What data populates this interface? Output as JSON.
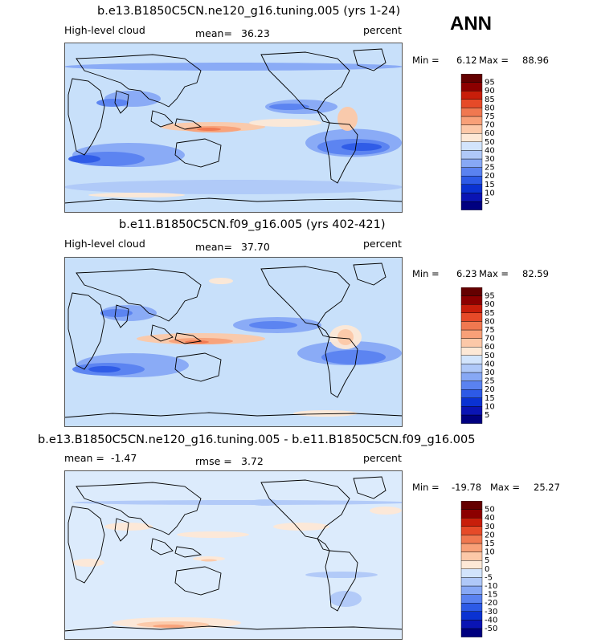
{
  "season": "ANN",
  "panels": [
    {
      "title": "b.e13.B1850C5CN.ne120_g16.tuning.005 (yrs 1-24)",
      "left_label": "High-level cloud",
      "mean_label": "mean=",
      "mean_value": "36.23",
      "units": "percent",
      "min_label": "Min =",
      "min_value": "6.12",
      "max_label": "Max =",
      "max_value": "88.96",
      "colorbar_levels": [
        "5",
        "10",
        "15",
        "20",
        "25",
        "30",
        "40",
        "50",
        "60",
        "70",
        "75",
        "80",
        "85",
        "90",
        "95"
      ],
      "fill": "#c8e0fa"
    },
    {
      "title": "b.e11.B1850C5CN.f09_g16.005 (yrs 402-421)",
      "left_label": "High-level cloud",
      "mean_label": "mean=",
      "mean_value": "37.70",
      "units": "percent",
      "min_label": "Min =",
      "min_value": "6.23",
      "max_label": "Max =",
      "max_value": "82.59",
      "colorbar_levels": [
        "5",
        "10",
        "15",
        "20",
        "25",
        "30",
        "40",
        "50",
        "60",
        "70",
        "75",
        "80",
        "85",
        "90",
        "95"
      ],
      "fill": "#c8e0fa"
    },
    {
      "title": "b.e13.B1850C5CN.ne120_g16.tuning.005 - b.e11.B1850C5CN.f09_g16.005",
      "left_label": "mean =",
      "mean_label": "",
      "mean_value": "-1.47",
      "rmse_label": "rmse =",
      "rmse_value": "3.72",
      "units": "percent",
      "min_label": "Min =",
      "min_value": "-19.78",
      "max_label": "Max =",
      "max_value": "25.27",
      "colorbar_levels": [
        "-50",
        "-40",
        "-30",
        "-20",
        "-15",
        "-10",
        "-5",
        "0",
        "5",
        "10",
        "15",
        "20",
        "30",
        "40",
        "50"
      ],
      "fill": "#dcebfc"
    }
  ],
  "colors": {
    "abs_scale": [
      "#000080",
      "#0a14b4",
      "#0a32d2",
      "#2d5ae6",
      "#5a82f0",
      "#87a8f5",
      "#afc8f8",
      "#d2e4fc",
      "#fde8d6",
      "#fcc8a8",
      "#f8a078",
      "#f07850",
      "#e64a28",
      "#c81e0a",
      "#8c0000",
      "#640000"
    ],
    "diff_scale": [
      "#000080",
      "#0a14b4",
      "#0a32d2",
      "#2d5ae6",
      "#5a82f0",
      "#87a8f5",
      "#afc8f8",
      "#d2e4fc",
      "#fde8d6",
      "#fcc8a8",
      "#f8a078",
      "#f07850",
      "#e64a28",
      "#c81e0a",
      "#8c0000",
      "#640000"
    ]
  }
}
